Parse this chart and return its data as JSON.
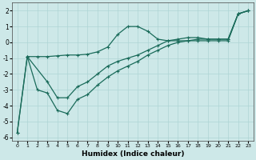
{
  "xlabel": "Humidex (Indice chaleur)",
  "ylabel": "",
  "xlim": [
    -0.5,
    23.5
  ],
  "ylim": [
    -6.2,
    2.5
  ],
  "yticks": [
    -6,
    -5,
    -4,
    -3,
    -2,
    -1,
    0,
    1,
    2
  ],
  "xticks": [
    0,
    1,
    2,
    3,
    4,
    5,
    6,
    7,
    8,
    9,
    10,
    11,
    12,
    13,
    14,
    15,
    16,
    17,
    18,
    19,
    20,
    21,
    22,
    23
  ],
  "line_color": "#1a6b5a",
  "bg_color": "#cde8e8",
  "grid_color": "#aed4d4",
  "lines": [
    {
      "x": [
        0,
        1,
        2,
        3,
        4,
        5,
        6,
        7,
        8,
        9,
        10,
        11,
        12,
        13,
        14,
        15,
        16,
        17,
        18,
        19,
        20,
        21,
        22,
        23
      ],
      "y": [
        -5.7,
        -0.9,
        -0.9,
        -0.9,
        -0.85,
        -0.8,
        -0.8,
        -0.75,
        -0.6,
        -0.3,
        0.5,
        1.0,
        1.0,
        0.7,
        0.2,
        0.1,
        0.1,
        0.1,
        0.1,
        0.1,
        0.1,
        0.1,
        1.8,
        2.0
      ]
    },
    {
      "x": [
        1,
        3,
        4,
        5,
        6,
        7,
        8,
        9,
        10,
        11,
        12,
        13,
        14,
        15,
        16,
        17,
        18,
        19,
        20,
        21,
        22,
        23
      ],
      "y": [
        -0.9,
        -2.5,
        -3.5,
        -3.5,
        -2.8,
        -2.5,
        -2.0,
        -1.5,
        -1.2,
        -1.0,
        -0.8,
        -0.5,
        -0.2,
        0.1,
        0.2,
        0.3,
        0.3,
        0.2,
        0.2,
        0.2,
        1.8,
        2.0
      ]
    },
    {
      "x": [
        0,
        1,
        2,
        3,
        4,
        5,
        6,
        7,
        8,
        9,
        10,
        11,
        12,
        13,
        14,
        15,
        16,
        17,
        18,
        19,
        20,
        21,
        22,
        23
      ],
      "y": [
        -5.7,
        -0.9,
        -3.0,
        -3.2,
        -4.3,
        -4.5,
        -3.6,
        -3.3,
        -2.7,
        -2.2,
        -1.8,
        -1.5,
        -1.2,
        -0.8,
        -0.5,
        -0.2,
        0.0,
        0.1,
        0.2,
        0.2,
        0.2,
        0.2,
        1.8,
        2.0
      ]
    }
  ]
}
